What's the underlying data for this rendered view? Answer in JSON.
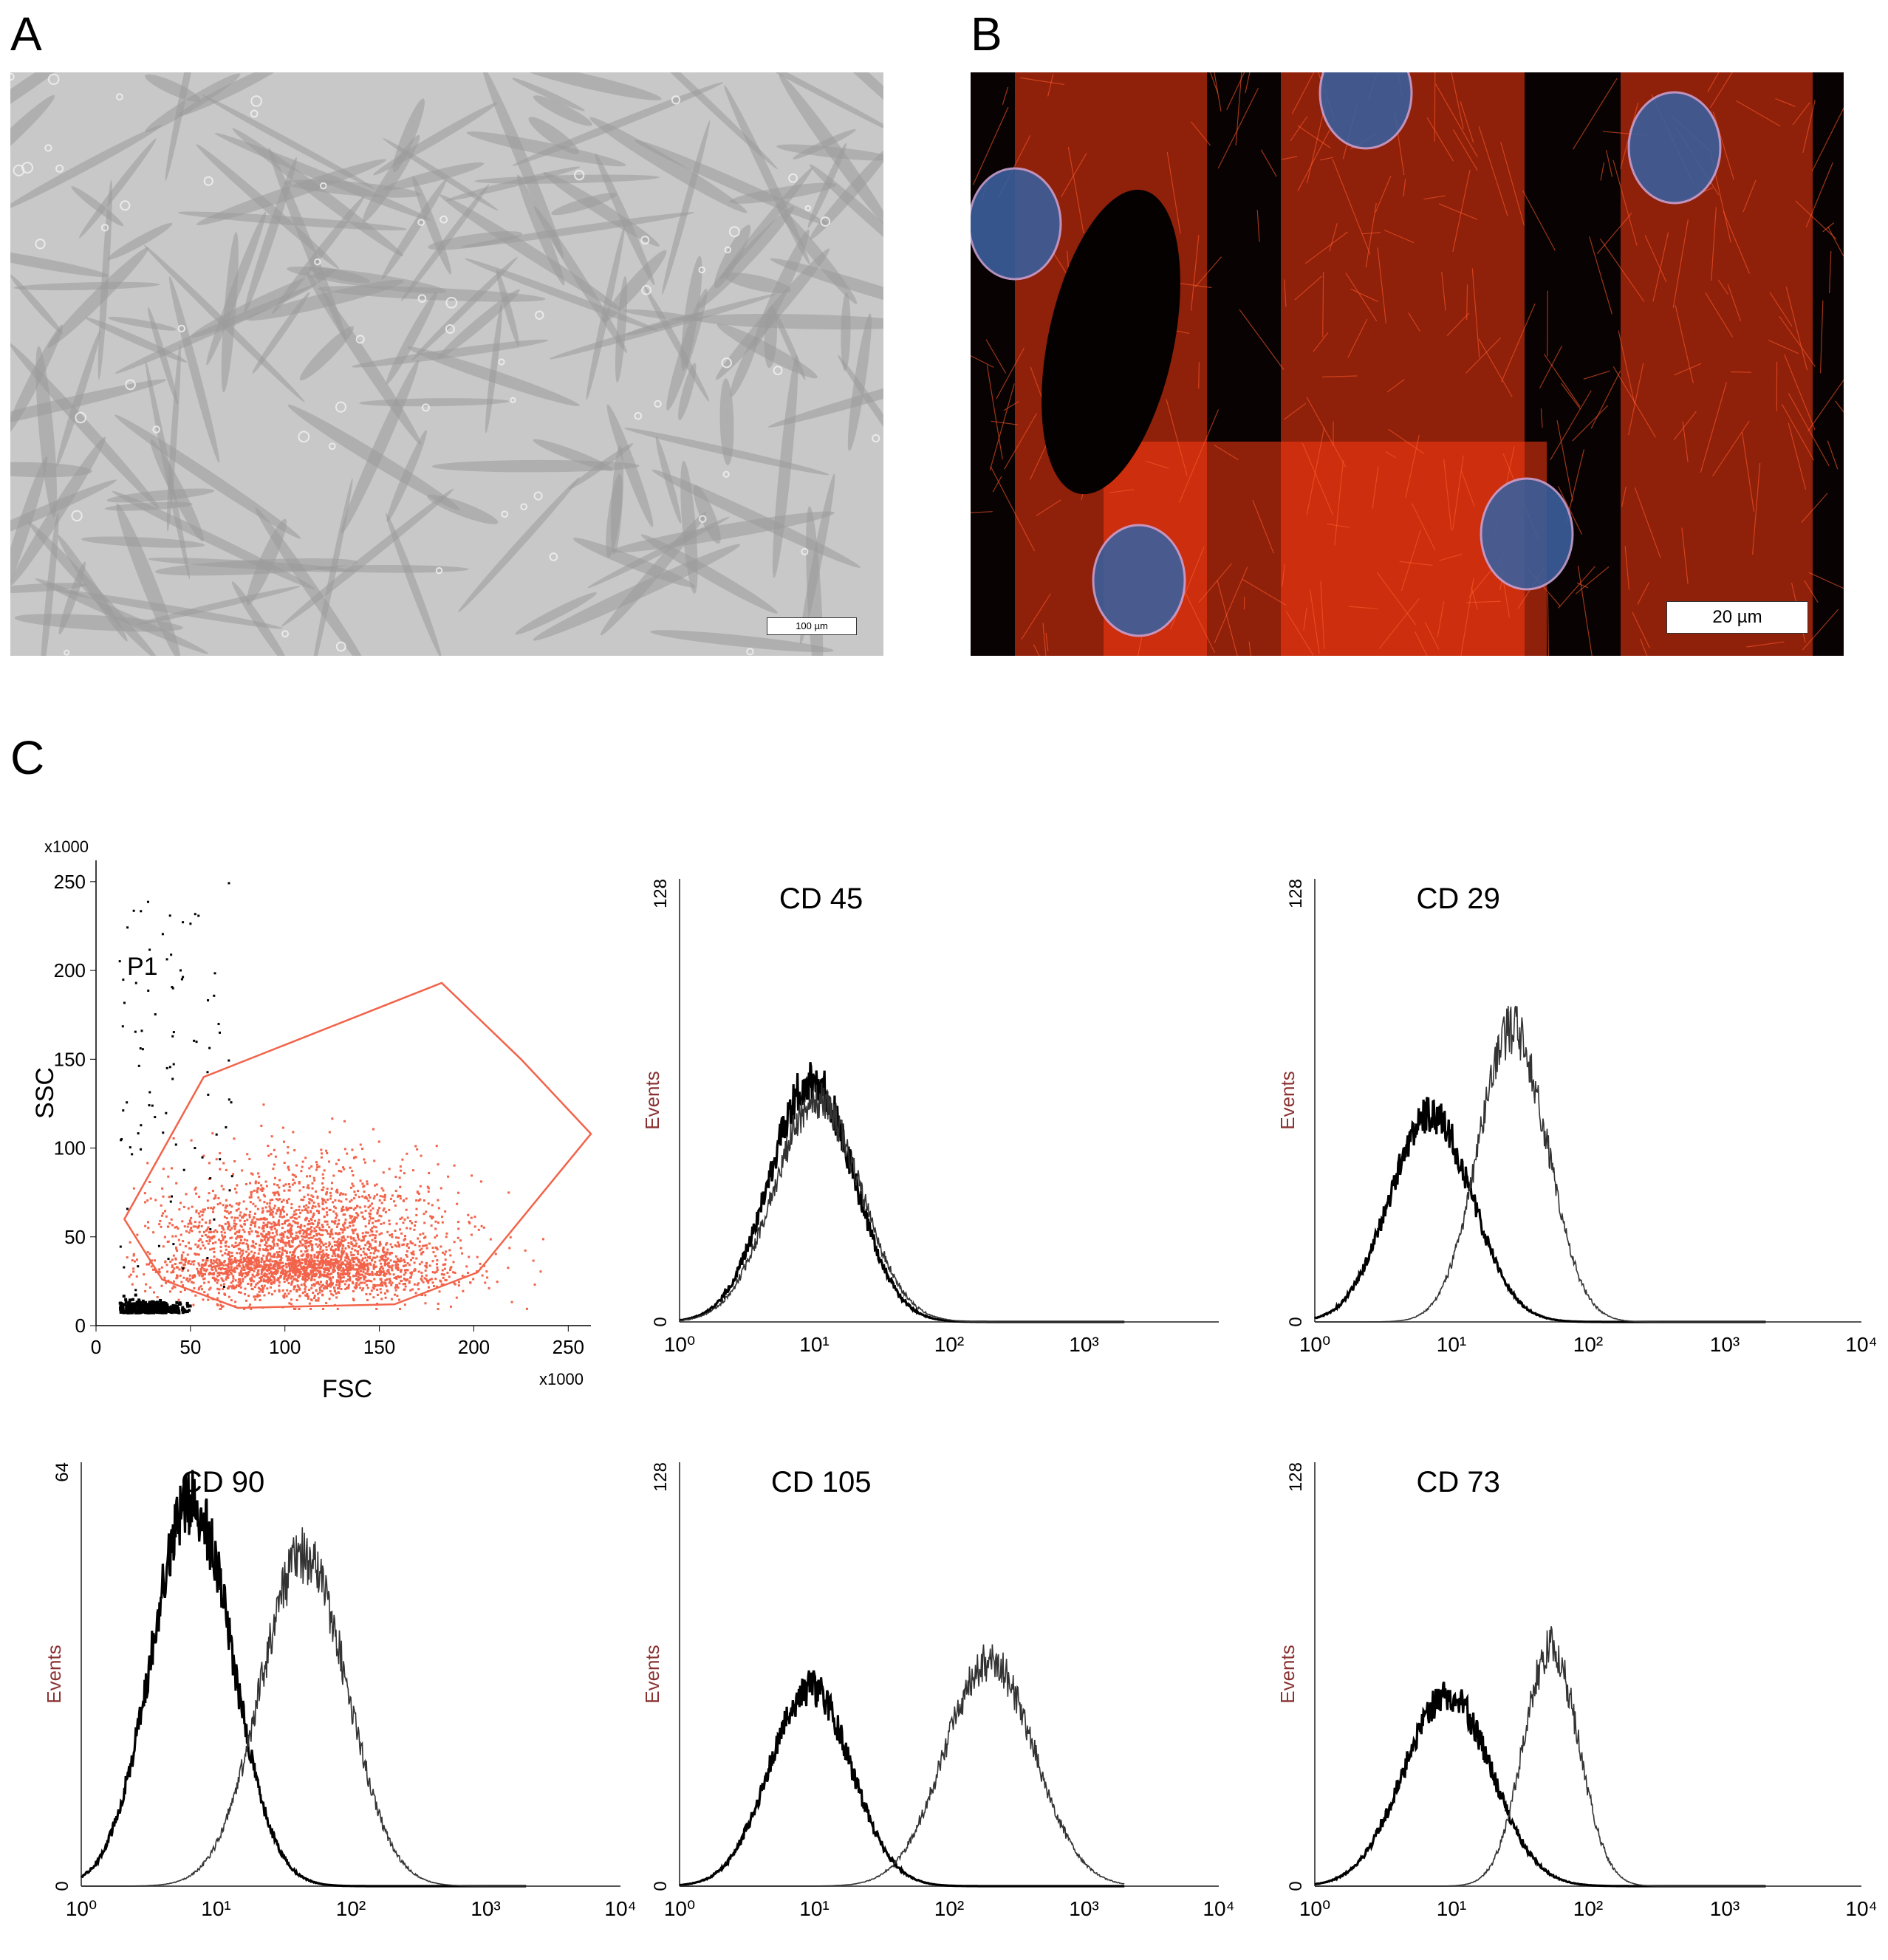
{
  "panels": {
    "a": {
      "letter": "A",
      "scale_bar": "100 µm"
    },
    "b": {
      "letter": "B",
      "scale_bar": "20 µm"
    },
    "c": {
      "letter": "C"
    }
  },
  "colors": {
    "gate": "#f2634a",
    "nuclei": "#3a5f9c",
    "cytoskeleton": "#ff3b12",
    "events_label": "#8a3030"
  },
  "chart_data": [
    {
      "type": "scatter",
      "xlabel": "FSC",
      "ylabel": "SSC",
      "x_multiplier": "x1000",
      "y_multiplier": "x1000",
      "xlim": [
        0,
        262
      ],
      "ylim": [
        0,
        262
      ],
      "xticks": [
        0,
        50,
        100,
        150,
        200,
        250
      ],
      "yticks": [
        0,
        50,
        100,
        150,
        200,
        250
      ],
      "gate_label": "P1",
      "gate_polygon": [
        [
          15,
          60
        ],
        [
          57,
          140
        ],
        [
          183,
          193
        ],
        [
          225,
          150
        ],
        [
          262,
          108
        ],
        [
          202,
          30
        ],
        [
          158,
          12
        ],
        [
          75,
          10
        ],
        [
          35,
          26
        ]
      ],
      "population": {
        "center": [
          110,
          38
        ],
        "spread": [
          38,
          18
        ]
      },
      "debris": {
        "center": [
          25,
          8
        ],
        "spread": [
          10,
          3
        ]
      }
    },
    {
      "type": "histogram",
      "title": "CD 45",
      "ylabel": "Events",
      "ymax_label": "128",
      "ymin_label": "0",
      "ymax": 128,
      "x_scale": "log",
      "xlim": [
        1,
        10000
      ],
      "xtick_labels": [
        "10⁰",
        "10¹",
        "10²",
        "10³"
      ],
      "series": [
        {
          "mode_log10": 0.98,
          "width_log10": 0.31,
          "peak": 70
        },
        {
          "mode_log10": 1.02,
          "width_log10": 0.32,
          "peak": 64
        }
      ]
    },
    {
      "type": "histogram",
      "title": "CD 29",
      "ylabel": "Events",
      "ymax_label": "128",
      "ymin_label": "0",
      "ymax": 128,
      "x_scale": "log",
      "xlim": [
        1,
        10000
      ],
      "xtick_labels": [
        "10⁰",
        "10¹",
        "10²",
        "10³",
        "10⁴"
      ],
      "series": [
        {
          "mode_log10": 0.85,
          "width_log10": 0.3,
          "peak": 60
        },
        {
          "mode_log10": 1.45,
          "width_log10": 0.25,
          "peak": 85
        }
      ]
    },
    {
      "type": "histogram",
      "title": "CD 90",
      "ylabel": "Events",
      "ymax_label": "64",
      "ymin_label": "0",
      "ymax": 64,
      "x_scale": "log",
      "xlim": [
        1,
        10000
      ],
      "xtick_labels": [
        "10⁰",
        "10¹",
        "10²",
        "10³",
        "10⁴"
      ],
      "series": [
        {
          "mode_log10": 0.82,
          "width_log10": 0.3,
          "peak": 58
        },
        {
          "mode_log10": 1.65,
          "width_log10": 0.32,
          "peak": 50
        }
      ]
    },
    {
      "type": "histogram",
      "title": "CD 105",
      "ylabel": "Events",
      "ymax_label": "128",
      "ymin_label": "0",
      "ymax": 128,
      "x_scale": "log",
      "xlim": [
        1,
        10000
      ],
      "xtick_labels": [
        "10⁰",
        "10¹",
        "10²",
        "10³",
        "10⁴"
      ],
      "series": [
        {
          "mode_log10": 0.97,
          "width_log10": 0.3,
          "peak": 60
        },
        {
          "mode_log10": 2.3,
          "width_log10": 0.33,
          "peak": 68
        }
      ]
    },
    {
      "type": "histogram",
      "title": "CD 73",
      "ylabel": "Events",
      "ymax_label": "128",
      "ymin_label": "0",
      "ymax": 128,
      "x_scale": "log",
      "xlim": [
        1,
        10000
      ],
      "xtick_labels": [
        "10⁰",
        "10¹",
        "10²",
        "10³",
        "10⁴"
      ],
      "series": [
        {
          "mode_log10": 0.97,
          "width_log10": 0.32,
          "peak": 58
        },
        {
          "mode_log10": 1.73,
          "width_log10": 0.2,
          "peak": 72
        }
      ]
    }
  ]
}
